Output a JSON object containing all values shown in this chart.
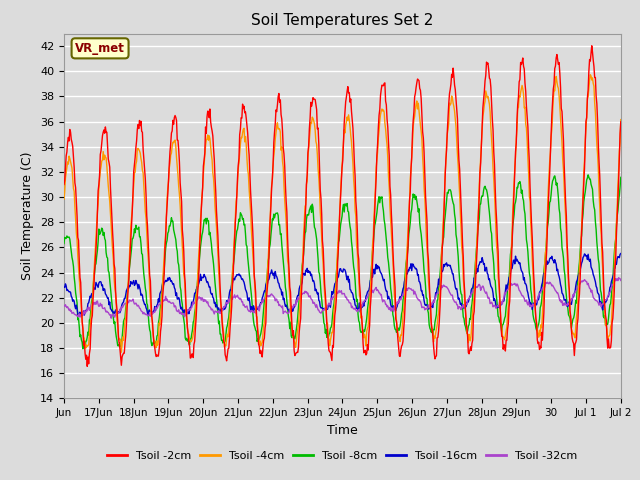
{
  "title": "Soil Temperatures Set 2",
  "xlabel": "Time",
  "ylabel": "Soil Temperature (C)",
  "ylim": [
    14,
    43
  ],
  "yticks": [
    14,
    16,
    18,
    20,
    22,
    24,
    26,
    28,
    30,
    32,
    34,
    36,
    38,
    40,
    42
  ],
  "annotation_text": "VR_met",
  "bg_color": "#dcdcdc",
  "grid_color": "white",
  "colors": {
    "2cm": "#ff0000",
    "4cm": "#ff9900",
    "8cm": "#00bb00",
    "16cm": "#0000cc",
    "32cm": "#aa44cc"
  },
  "legend_labels": [
    "Tsoil -2cm",
    "Tsoil -4cm",
    "Tsoil -8cm",
    "Tsoil -16cm",
    "Tsoil -32cm"
  ],
  "tick_labels": [
    "Jun",
    "17Jun",
    "18Jun",
    "19Jun",
    "20Jun",
    "21Jun",
    "22Jun",
    "23Jun",
    "24Jun",
    "25Jun",
    "26Jun",
    "27Jun",
    "28Jun",
    "29Jun",
    "30",
    "Jul 1",
    "Jul 2"
  ],
  "num_days": 16,
  "samples_per_day": 48
}
